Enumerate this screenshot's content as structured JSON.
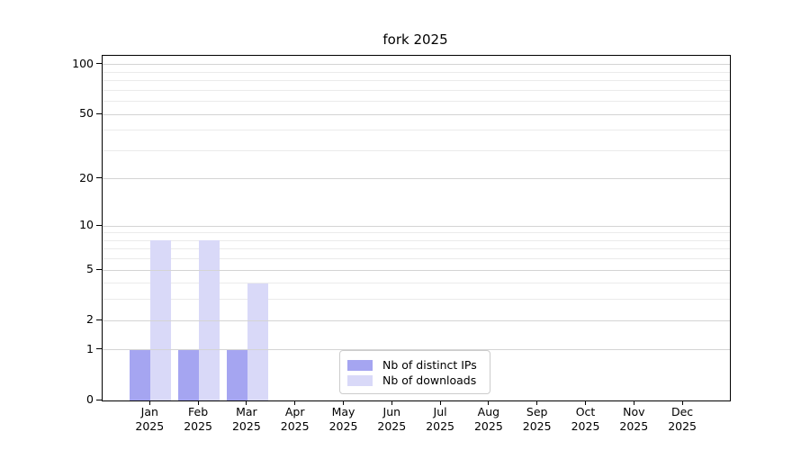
{
  "title": "fork 2025",
  "chart_data": {
    "type": "bar",
    "categories": [
      "Jan",
      "Feb",
      "Mar",
      "Apr",
      "May",
      "Jun",
      "Jul",
      "Aug",
      "Sep",
      "Oct",
      "Nov",
      "Dec"
    ],
    "year_label": "2025",
    "series": [
      {
        "name": "Nb of distinct IPs",
        "color": "#a5a5f1",
        "values": [
          1,
          1,
          1,
          0,
          0,
          0,
          0,
          0,
          0,
          0,
          0,
          0
        ]
      },
      {
        "name": "Nb of downloads",
        "color": "#d9d9f8",
        "values": [
          8,
          8,
          4,
          0,
          0,
          0,
          0,
          0,
          0,
          0,
          0,
          0
        ]
      }
    ],
    "y_axis": {
      "scale": "log1p",
      "major_ticks": [
        0,
        1,
        2,
        5,
        10,
        20,
        50,
        100
      ],
      "minor_ticks": [
        3,
        4,
        6,
        7,
        8,
        9,
        30,
        40,
        60,
        70,
        80,
        90
      ],
      "max": 113
    },
    "grid": "horizontal",
    "legend_position": "bottom-center-inside"
  },
  "colors": {
    "grid_major": "#d4d4d4",
    "grid_minor": "#ebebeb",
    "axis": "#000000",
    "background": "#ffffff",
    "legend_border": "#cccccc"
  }
}
